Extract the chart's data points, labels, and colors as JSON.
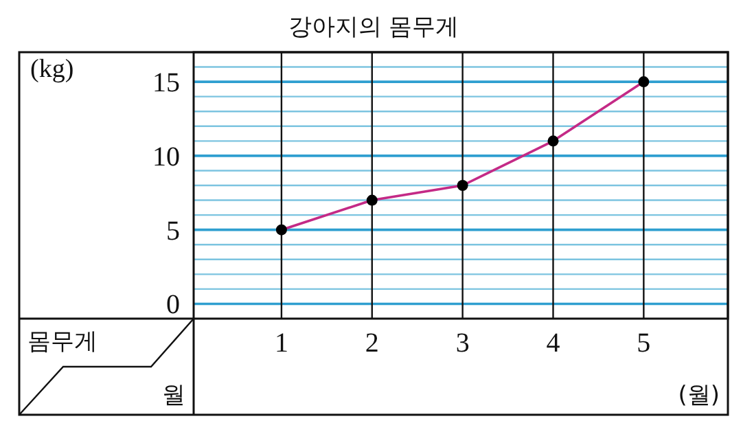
{
  "chart_data": {
    "type": "line",
    "title": "강아지의 몸무게",
    "ylabel": "(kg)",
    "xlabel": "(월)",
    "annotations": [
      "몸무게",
      "월"
    ],
    "categories": [
      "1",
      "2",
      "3",
      "4",
      "5"
    ],
    "series": [
      {
        "color": "#c42a86",
        "values": [
          5,
          7,
          8,
          11,
          15
        ]
      }
    ],
    "ylim": [
      -1,
      17
    ],
    "yticks": [
      0,
      {
        "value": 1,
        "label": null
      },
      {
        "value": 2,
        "label": null
      },
      {
        "value": 3,
        "label": null
      },
      {
        "value": 4,
        "label": null
      },
      5,
      {
        "value": 6,
        "label": null
      },
      {
        "value": 7,
        "label": null
      },
      {
        "value": 8,
        "label": null
      },
      {
        "value": 9,
        "label": null
      },
      10,
      {
        "value": 11,
        "label": null
      },
      {
        "value": 12,
        "label": null
      },
      {
        "value": 13,
        "label": null
      },
      {
        "value": 14,
        "label": null
      },
      15,
      {
        "value": 16,
        "label": null
      }
    ],
    "grid": true,
    "marker": "circle",
    "line_style": "solid"
  }
}
